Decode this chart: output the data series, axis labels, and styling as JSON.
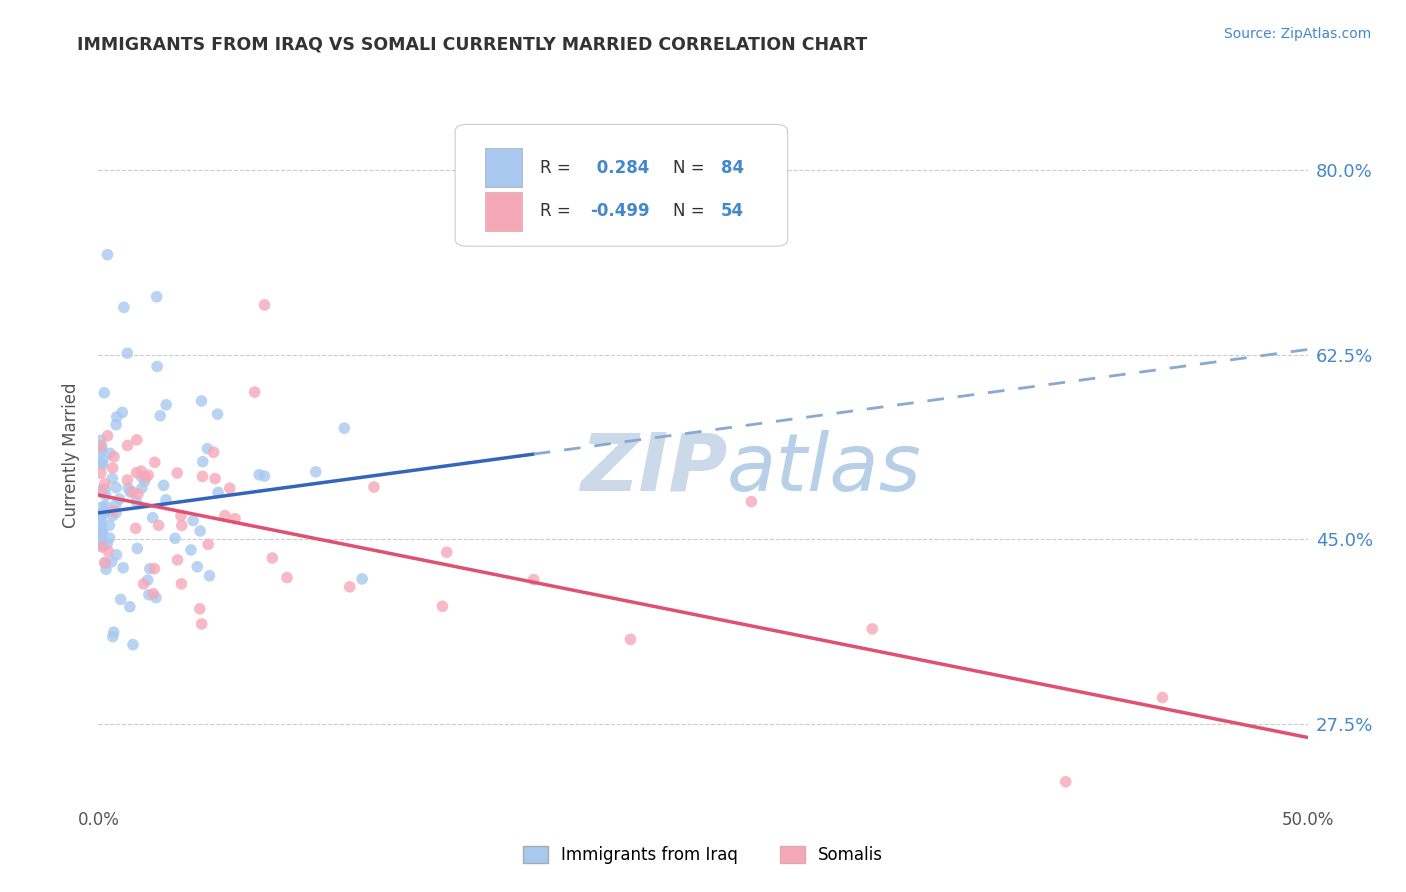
{
  "title": "IMMIGRANTS FROM IRAQ VS SOMALI CURRENTLY MARRIED CORRELATION CHART",
  "source_text": "Source: ZipAtlas.com",
  "ylabel": "Currently Married",
  "xmin": 0.0,
  "xmax": 0.5,
  "ymin": 0.2,
  "ymax": 0.86,
  "yticks": [
    0.275,
    0.45,
    0.625,
    0.8
  ],
  "ytick_labels": [
    "27.5%",
    "45.0%",
    "62.5%",
    "80.0%"
  ],
  "xticks": [
    0.0,
    0.1,
    0.2,
    0.3,
    0.4,
    0.5
  ],
  "xtick_labels": [
    "0.0%",
    "",
    "",
    "",
    "",
    "50.0%"
  ],
  "iraq_R": 0.284,
  "iraq_N": 84,
  "somali_R": -0.499,
  "somali_N": 54,
  "iraq_color": "#a8c8f0",
  "somali_color": "#f5a8b8",
  "iraq_line_color": "#3366bb",
  "somali_line_color": "#e05070",
  "dashed_line_color": "#88aad0",
  "legend_iraq_label": "Immigrants from Iraq",
  "legend_somali_label": "Somalis",
  "background_color": "#ffffff",
  "watermark_color": "#ccd9e8",
  "iraq_trend_start_x": 0.0,
  "iraq_trend_end_solid_x": 0.18,
  "iraq_trend_end_x": 0.5,
  "iraq_trend_y0": 0.475,
  "iraq_trend_slope": 0.31,
  "somali_trend_start_x": 0.0,
  "somali_trend_end_x": 0.5,
  "somali_trend_y0": 0.492,
  "somali_trend_slope": -0.46
}
